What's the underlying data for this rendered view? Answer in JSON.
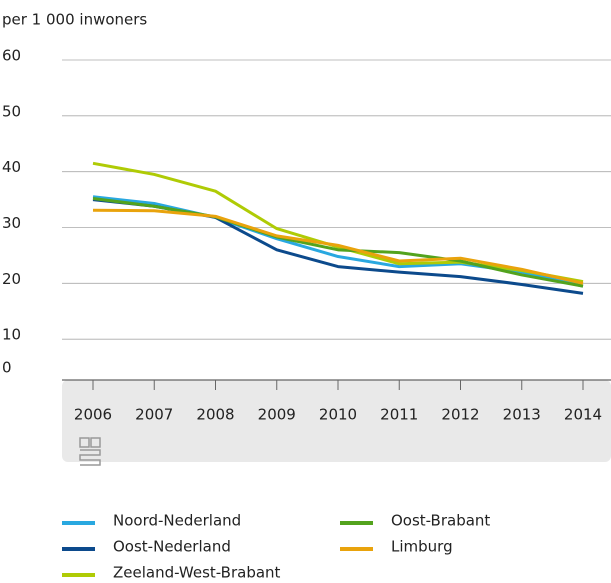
{
  "chart_data": {
    "type": "line",
    "y_axis_label": "per 1 000 inwoners",
    "categories": [
      "2006",
      "2007",
      "2008",
      "2009",
      "2010",
      "2011",
      "2012",
      "2013",
      "2014"
    ],
    "ylim": [
      0,
      60
    ],
    "yticks": [
      0,
      10,
      20,
      30,
      40,
      50,
      60
    ],
    "grid": true,
    "legend": "bottom",
    "series": [
      {
        "name": "Noord-Nederland",
        "color": "#29a8e0",
        "values": [
          35.5,
          34.3,
          31.8,
          28.0,
          24.8,
          23.0,
          23.5,
          22.0,
          19.5
        ]
      },
      {
        "name": "Oost-Nederland",
        "color": "#0c4a8c",
        "values": [
          35.0,
          33.8,
          31.8,
          26.0,
          23.0,
          22.0,
          21.2,
          19.8,
          18.2
        ]
      },
      {
        "name": "Zeeland-West-Brabant",
        "color": "#afcb05",
        "values": [
          41.5,
          39.5,
          36.5,
          29.8,
          26.5,
          23.5,
          23.8,
          22.3,
          20.3
        ]
      },
      {
        "name": "Oost-Brabant",
        "color": "#53a31d",
        "values": [
          35.2,
          33.8,
          31.9,
          28.3,
          26.0,
          25.5,
          24.0,
          21.5,
          19.5
        ]
      },
      {
        "name": "Limburg",
        "color": "#e9a30c",
        "values": [
          33.1,
          33.0,
          32.0,
          28.5,
          26.8,
          24.0,
          24.5,
          22.5,
          20.0
        ]
      }
    ]
  }
}
